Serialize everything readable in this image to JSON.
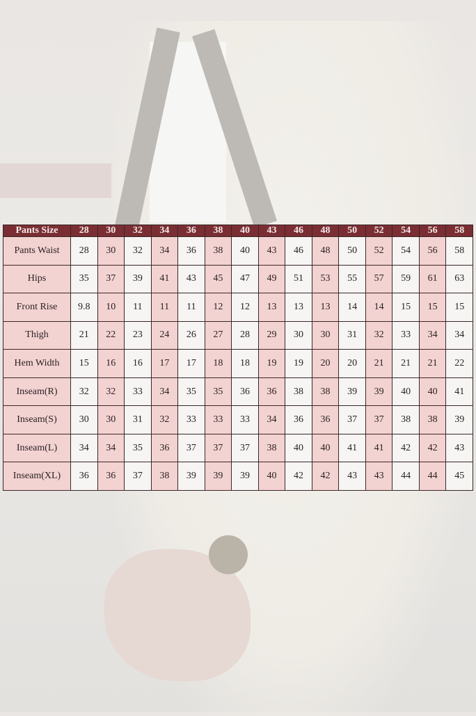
{
  "size_chart": {
    "header_label": "Pants Size",
    "sizes": [
      "28",
      "30",
      "32",
      "34",
      "36",
      "38",
      "40",
      "43",
      "46",
      "48",
      "50",
      "52",
      "54",
      "56",
      "58"
    ],
    "rows": [
      {
        "label": "Pants Waist",
        "values": [
          "28",
          "30",
          "32",
          "34",
          "36",
          "38",
          "40",
          "43",
          "46",
          "48",
          "50",
          "52",
          "54",
          "56",
          "58"
        ]
      },
      {
        "label": "Hips",
        "values": [
          "35",
          "37",
          "39",
          "41",
          "43",
          "45",
          "47",
          "49",
          "51",
          "53",
          "55",
          "57",
          "59",
          "61",
          "63"
        ]
      },
      {
        "label": "Front Rise",
        "values": [
          "9.8",
          "10",
          "11",
          "11",
          "11",
          "12",
          "12",
          "13",
          "13",
          "13",
          "14",
          "14",
          "15",
          "15",
          "15"
        ]
      },
      {
        "label": "Thigh",
        "values": [
          "21",
          "22",
          "23",
          "24",
          "26",
          "27",
          "28",
          "29",
          "30",
          "30",
          "31",
          "32",
          "33",
          "34",
          "34"
        ]
      },
      {
        "label": "Hem Width",
        "values": [
          "15",
          "16",
          "16",
          "17",
          "17",
          "18",
          "18",
          "19",
          "19",
          "20",
          "20",
          "21",
          "21",
          "21",
          "22"
        ]
      },
      {
        "label": "Inseam(R)",
        "values": [
          "32",
          "32",
          "33",
          "34",
          "35",
          "35",
          "36",
          "36",
          "38",
          "38",
          "39",
          "39",
          "40",
          "40",
          "41"
        ]
      },
      {
        "label": "Inseam(S)",
        "values": [
          "30",
          "30",
          "31",
          "32",
          "33",
          "33",
          "33",
          "34",
          "36",
          "36",
          "37",
          "37",
          "38",
          "38",
          "39"
        ]
      },
      {
        "label": "Inseam(L)",
        "values": [
          "34",
          "34",
          "35",
          "36",
          "37",
          "37",
          "37",
          "38",
          "40",
          "40",
          "41",
          "41",
          "42",
          "42",
          "43"
        ]
      },
      {
        "label": "Inseam(XL)",
        "values": [
          "36",
          "36",
          "37",
          "38",
          "39",
          "39",
          "39",
          "40",
          "42",
          "42",
          "43",
          "43",
          "44",
          "44",
          "45"
        ]
      }
    ],
    "colors": {
      "header": "#7a2e33",
      "highlight": "#f3d3d2",
      "plain": "#f6f5f4"
    }
  }
}
